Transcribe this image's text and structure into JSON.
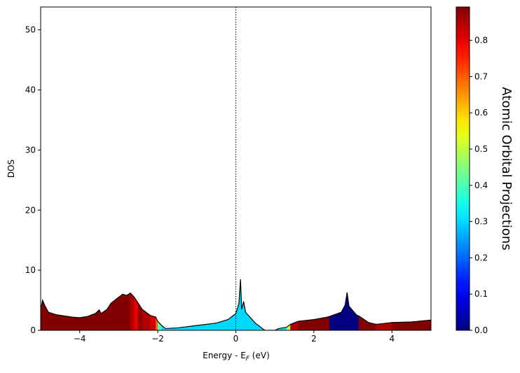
{
  "chart_data": {
    "type": "projected-dos",
    "xlabel": {
      "text": "Energy - E",
      "sub": "F",
      "tail": " (eV)"
    },
    "ylabel": "DOS",
    "colorbar_label": "Atomic Orbital Projections",
    "line_color": "#000000",
    "fermi_line": 0,
    "x": [
      -5.0,
      -4.95,
      -4.9,
      -4.8,
      -4.6,
      -4.4,
      -4.2,
      -4.0,
      -3.8,
      -3.6,
      -3.5,
      -3.45,
      -3.3,
      -3.2,
      -3.0,
      -2.9,
      -2.8,
      -2.7,
      -2.6,
      -2.5,
      -2.4,
      -2.2,
      -2.05,
      -2.0,
      -1.9,
      -1.8,
      -1.5,
      -1.0,
      -0.5,
      -0.2,
      0.0,
      0.08,
      0.12,
      0.15,
      0.2,
      0.25,
      0.5,
      0.7,
      0.75,
      1.0,
      1.1,
      1.3,
      1.4,
      1.6,
      2.0,
      2.35,
      2.4,
      2.7,
      2.8,
      2.85,
      2.9,
      3.1,
      3.15,
      3.4,
      3.6,
      4.0,
      4.5,
      5.0
    ],
    "series": [
      {
        "name": "DOS",
        "values": [
          3.5,
          5.0,
          4.2,
          3.0,
          2.6,
          2.4,
          2.2,
          2.1,
          2.3,
          2.8,
          3.4,
          2.8,
          3.5,
          4.5,
          5.5,
          6.0,
          5.8,
          6.2,
          5.5,
          4.5,
          3.5,
          2.5,
          2.2,
          1.5,
          0.8,
          0.3,
          0.4,
          0.8,
          1.2,
          1.8,
          2.8,
          4.5,
          8.5,
          3.5,
          4.8,
          3.0,
          1.2,
          0.2,
          0.0,
          0.0,
          0.3,
          0.5,
          1.0,
          1.5,
          1.8,
          2.2,
          2.3,
          3.0,
          4.2,
          6.3,
          4.0,
          2.5,
          2.4,
          1.3,
          1.0,
          1.3,
          1.4,
          1.7
        ]
      }
    ],
    "projections": [
      0.89,
      0.89,
      0.89,
      0.89,
      0.89,
      0.89,
      0.89,
      0.89,
      0.89,
      0.89,
      0.89,
      0.89,
      0.89,
      0.89,
      0.89,
      0.89,
      0.89,
      0.85,
      0.8,
      0.88,
      0.85,
      0.82,
      0.7,
      0.4,
      0.3,
      0.3,
      0.3,
      0.3,
      0.3,
      0.3,
      0.3,
      0.3,
      0.3,
      0.3,
      0.3,
      0.3,
      0.3,
      0.3,
      0.3,
      0.3,
      0.3,
      0.5,
      0.85,
      0.89,
      0.89,
      0.89,
      0.0,
      0.0,
      0.0,
      0.0,
      0.0,
      0.0,
      0.89,
      0.89,
      0.85,
      0.89,
      0.89,
      0.89
    ],
    "xlim": [
      -5,
      5
    ],
    "ylim": [
      0,
      53.8
    ],
    "clim": [
      0,
      0.892
    ],
    "xticks": [
      {
        "value": -4,
        "label": "−4"
      },
      {
        "value": -2,
        "label": "−2"
      },
      0,
      2,
      4
    ],
    "yticks": [
      0,
      10,
      20,
      30,
      40,
      50
    ],
    "cticks": [
      {
        "value": 0,
        "label": "0.0"
      },
      0.1,
      0.2,
      0.3,
      0.4,
      0.5,
      0.6,
      0.7,
      0.8
    ],
    "colormap": "jet"
  }
}
